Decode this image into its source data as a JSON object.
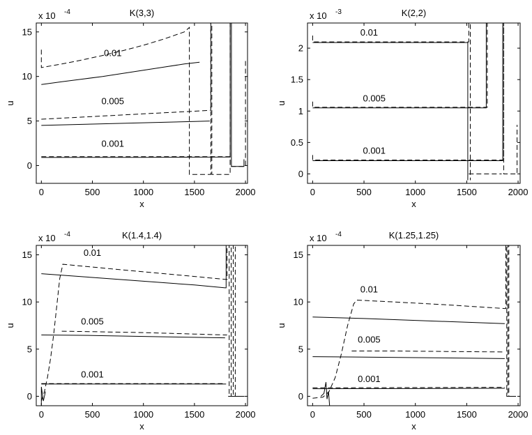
{
  "chart_data": [
    {
      "type": "line",
      "title": "K(3,3)",
      "xlabel": "x",
      "ylabel": "u",
      "exponent_label": "x 10",
      "exponent_power": "-4",
      "xlim": [
        -50,
        2020
      ],
      "ylim": [
        -2,
        16
      ],
      "xticks": [
        0,
        500,
        1000,
        1500,
        2000
      ],
      "xtick_labels": [
        "0",
        "500",
        "1000",
        "1500",
        "2000"
      ],
      "yticks": [
        0,
        5,
        10,
        15
      ],
      "ytick_labels": [
        "0",
        "5",
        "10",
        "15"
      ],
      "grid": false,
      "legend": "none",
      "series": [
        {
          "style": "solid",
          "points": [
            [
              0,
              9.1
            ],
            [
              200,
              9.4
            ],
            [
              400,
              9.7
            ],
            [
              600,
              10.0
            ],
            [
              800,
              10.35
            ],
            [
              1000,
              10.7
            ],
            [
              1200,
              11.05
            ],
            [
              1400,
              11.4
            ],
            [
              1550,
              11.6
            ]
          ]
        },
        {
          "style": "dashed",
          "points": [
            [
              0,
              13.0
            ],
            [
              0,
              11.0
            ],
            [
              200,
              11.4
            ],
            [
              400,
              11.85
            ],
            [
              600,
              12.35
            ],
            [
              800,
              12.9
            ],
            [
              1000,
              13.5
            ],
            [
              1200,
              14.2
            ],
            [
              1400,
              15.0
            ],
            [
              1450,
              15.5
            ],
            [
              1450,
              -1.0
            ],
            [
              1660,
              -1.0
            ],
            [
              1660,
              16.0
            ]
          ]
        },
        {
          "style": "solid",
          "points": [
            [
              0,
              4.5
            ],
            [
              500,
              4.65
            ],
            [
              1000,
              4.8
            ],
            [
              1500,
              4.95
            ],
            [
              1650,
              5.0
            ]
          ]
        },
        {
          "style": "dashed",
          "points": [
            [
              0,
              5.2
            ],
            [
              500,
              5.5
            ],
            [
              1000,
              5.8
            ],
            [
              1500,
              6.1
            ],
            [
              1660,
              6.2
            ],
            [
              1660,
              16.0
            ],
            [
              1670,
              16.0
            ],
            [
              1670,
              -1.0
            ],
            [
              1850,
              -1.0
            ],
            [
              1850,
              16.0
            ]
          ]
        },
        {
          "style": "solid",
          "points": [
            [
              0,
              0.9
            ],
            [
              1000,
              0.92
            ],
            [
              1850,
              0.95
            ],
            [
              1850,
              16.0
            ],
            [
              1862,
              16.0
            ],
            [
              1862,
              -0.1
            ],
            [
              1985,
              -0.1
            ],
            [
              1985,
              0.7
            ]
          ]
        },
        {
          "style": "dashed",
          "points": [
            [
              0,
              1.0
            ],
            [
              1000,
              1.0
            ],
            [
              1850,
              1.0
            ],
            [
              1850,
              -0.1
            ],
            [
              2000,
              -0.1
            ],
            [
              2000,
              12.0
            ]
          ]
        }
      ],
      "labels": [
        {
          "text": "0.01",
          "x": 700,
          "y": 12.3
        },
        {
          "text": "0.005",
          "x": 700,
          "y": 6.9
        },
        {
          "text": "0.001",
          "x": 700,
          "y": 2.1
        }
      ]
    },
    {
      "type": "line",
      "title": "K(2,2)",
      "xlabel": "x",
      "ylabel": "u",
      "exponent_label": "x 10",
      "exponent_power": "-3",
      "xlim": [
        -50,
        2020
      ],
      "ylim": [
        -0.15,
        2.4
      ],
      "xticks": [
        0,
        500,
        1000,
        1500,
        2000
      ],
      "xtick_labels": [
        "0",
        "500",
        "1000",
        "1500",
        "2000"
      ],
      "yticks": [
        0,
        0.5,
        1,
        1.5,
        2
      ],
      "ytick_labels": [
        "0",
        "0.5",
        "1",
        "1.5",
        "2"
      ],
      "grid": false,
      "legend": "none",
      "series": [
        {
          "style": "solid",
          "points": [
            [
              0,
              2.09
            ],
            [
              1510,
              2.09
            ],
            [
              1510,
              -0.1
            ]
          ]
        },
        {
          "style": "dashed",
          "points": [
            [
              0,
              2.2
            ],
            [
              0,
              2.1
            ],
            [
              1520,
              2.1
            ],
            [
              1520,
              2.4
            ],
            [
              1535,
              2.4
            ],
            [
              1535,
              -0.1
            ]
          ]
        },
        {
          "style": "solid",
          "points": [
            [
              0,
              1.05
            ],
            [
              1690,
              1.05
            ],
            [
              1690,
              2.4
            ]
          ]
        },
        {
          "style": "dashed",
          "points": [
            [
              0,
              1.15
            ],
            [
              0,
              1.06
            ],
            [
              1700,
              1.06
            ],
            [
              1700,
              2.4
            ]
          ]
        },
        {
          "style": "solid",
          "points": [
            [
              0,
              0.21
            ],
            [
              1850,
              0.21
            ],
            [
              1850,
              2.4
            ]
          ]
        },
        {
          "style": "dashed",
          "points": [
            [
              0,
              0.3
            ],
            [
              0,
              0.22
            ],
            [
              1860,
              0.22
            ],
            [
              1860,
              2.4
            ],
            [
              1860,
              0.0
            ],
            [
              1990,
              0.0
            ],
            [
              1990,
              0.78
            ]
          ]
        },
        {
          "style": "dashed",
          "points": [
            [
              1520,
              0.0
            ],
            [
              1840,
              0.0
            ]
          ]
        }
      ],
      "labels": [
        {
          "text": "0.01",
          "x": 550,
          "y": 2.2
        },
        {
          "text": "0.005",
          "x": 600,
          "y": 1.15
        },
        {
          "text": "0.001",
          "x": 600,
          "y": 0.32
        }
      ]
    },
    {
      "type": "line",
      "title": "K(1.4,1.4)",
      "xlabel": "x",
      "ylabel": "u",
      "exponent_label": "x 10",
      "exponent_power": "-4",
      "xlim": [
        -50,
        2020
      ],
      "ylim": [
        -1,
        16
      ],
      "xticks": [
        0,
        500,
        1000,
        1500,
        2000
      ],
      "xtick_labels": [
        "0",
        "500",
        "1000",
        "1500",
        "2000"
      ],
      "yticks": [
        0,
        5,
        10,
        15
      ],
      "ytick_labels": [
        "0",
        "5",
        "10",
        "15"
      ],
      "grid": false,
      "legend": "none",
      "series": [
        {
          "style": "solid",
          "points": [
            [
              0,
              13.0
            ],
            [
              500,
              12.6
            ],
            [
              1000,
              12.2
            ],
            [
              1500,
              11.8
            ],
            [
              1800,
              11.5
            ],
            [
              1810,
              11.5
            ],
            [
              1810,
              16.0
            ]
          ]
        },
        {
          "style": "dashed",
          "points": [
            [
              0,
              -0.5
            ],
            [
              30,
              0.5
            ],
            [
              60,
              2.0
            ],
            [
              90,
              4.0
            ],
            [
              120,
              6.5
            ],
            [
              150,
              9.5
            ],
            [
              180,
              12.5
            ],
            [
              210,
              14.0
            ],
            [
              500,
              13.7
            ],
            [
              1000,
              13.2
            ],
            [
              1500,
              12.7
            ],
            [
              1800,
              12.4
            ],
            [
              1820,
              12.4
            ],
            [
              1820,
              16.0
            ],
            [
              1840,
              16.0
            ],
            [
              1840,
              0.0
            ],
            [
              1860,
              0.0
            ],
            [
              1860,
              16.0
            ],
            [
              1880,
              16.0
            ],
            [
              1880,
              0.0
            ],
            [
              1900,
              0.0
            ],
            [
              1900,
              16.0
            ]
          ]
        },
        {
          "style": "solid",
          "points": [
            [
              0,
              6.5
            ],
            [
              500,
              6.45
            ],
            [
              1000,
              6.35
            ],
            [
              1500,
              6.25
            ],
            [
              1800,
              6.2
            ]
          ]
        },
        {
          "style": "dashed",
          "points": [
            [
              200,
              6.9
            ],
            [
              500,
              6.85
            ],
            [
              1000,
              6.75
            ],
            [
              1500,
              6.6
            ],
            [
              1800,
              6.5
            ],
            [
              1820,
              6.5
            ]
          ]
        },
        {
          "style": "solid",
          "points": [
            [
              0,
              1.3
            ],
            [
              1000,
              1.3
            ],
            [
              1800,
              1.3
            ],
            [
              1810,
              1.3
            ]
          ]
        },
        {
          "style": "dashed",
          "points": [
            [
              0,
              1.35
            ],
            [
              1000,
              1.35
            ],
            [
              1800,
              1.35
            ]
          ]
        },
        {
          "style": "solid",
          "points": [
            [
              1830,
              0.0
            ],
            [
              1990,
              0.0
            ]
          ]
        },
        {
          "style": "solid",
          "points": [
            [
              0,
              -1.0
            ],
            [
              0,
              1.0
            ],
            [
              20,
              -0.5
            ],
            [
              40,
              0.5
            ]
          ]
        }
      ],
      "labels": [
        {
          "text": "0.01",
          "x": 500,
          "y": 14.9
        },
        {
          "text": "0.005",
          "x": 500,
          "y": 7.6
        },
        {
          "text": "0.001",
          "x": 500,
          "y": 2.0
        }
      ]
    },
    {
      "type": "line",
      "title": "K(1.25,1.25)",
      "xlabel": "x",
      "ylabel": "u",
      "exponent_label": "x 10",
      "exponent_power": "-4",
      "xlim": [
        -50,
        2020
      ],
      "ylim": [
        -1,
        16
      ],
      "xticks": [
        0,
        500,
        1000,
        1500,
        2000
      ],
      "xtick_labels": [
        "0",
        "500",
        "1000",
        "1500",
        "2000"
      ],
      "yticks": [
        0,
        5,
        10,
        15
      ],
      "ytick_labels": [
        "0",
        "5",
        "10",
        "15"
      ],
      "grid": false,
      "legend": "none",
      "series": [
        {
          "style": "solid",
          "points": [
            [
              0,
              8.4
            ],
            [
              500,
              8.25
            ],
            [
              1000,
              8.05
            ],
            [
              1500,
              7.85
            ],
            [
              1870,
              7.7
            ]
          ]
        },
        {
          "style": "dashed",
          "points": [
            [
              0,
              -0.2
            ],
            [
              100,
              -0.1
            ],
            [
              160,
              0.5
            ],
            [
              220,
              2.0
            ],
            [
              280,
              4.5
            ],
            [
              340,
              7.5
            ],
            [
              400,
              9.8
            ],
            [
              430,
              10.2
            ],
            [
              800,
              10.0
            ],
            [
              1300,
              9.7
            ],
            [
              1870,
              9.3
            ],
            [
              1880,
              9.3
            ],
            [
              1880,
              16.0
            ],
            [
              1890,
              16.0
            ],
            [
              1890,
              0.0
            ],
            [
              1900,
              0.0
            ],
            [
              1900,
              16.0
            ],
            [
              1910,
              16.0
            ],
            [
              1910,
              0.0
            ]
          ]
        },
        {
          "style": "solid",
          "points": [
            [
              0,
              4.2
            ],
            [
              500,
              4.15
            ],
            [
              1000,
              4.1
            ],
            [
              1500,
              4.05
            ],
            [
              1870,
              4.0
            ]
          ]
        },
        {
          "style": "dashed",
          "points": [
            [
              380,
              4.8
            ],
            [
              800,
              4.8
            ],
            [
              1300,
              4.75
            ],
            [
              1870,
              4.7
            ]
          ]
        },
        {
          "style": "solid",
          "points": [
            [
              0,
              0.8
            ],
            [
              1000,
              0.82
            ],
            [
              1870,
              0.85
            ]
          ]
        },
        {
          "style": "dashed",
          "points": [
            [
              0,
              0.9
            ],
            [
              1000,
              0.92
            ],
            [
              1870,
              0.95
            ]
          ]
        },
        {
          "style": "solid",
          "points": [
            [
              1900,
              0.0
            ],
            [
              1980,
              0.0
            ]
          ]
        },
        {
          "style": "solid",
          "points": [
            [
              80,
              0.0
            ],
            [
              110,
              0.3
            ],
            [
              130,
              1.5
            ],
            [
              140,
              -0.3
            ],
            [
              155,
              0.5
            ],
            [
              165,
              -1.0
            ]
          ]
        }
      ],
      "labels": [
        {
          "text": "0.01",
          "x": 550,
          "y": 11.0
        },
        {
          "text": "0.005",
          "x": 550,
          "y": 5.7
        },
        {
          "text": "0.001",
          "x": 550,
          "y": 1.5
        }
      ]
    }
  ]
}
